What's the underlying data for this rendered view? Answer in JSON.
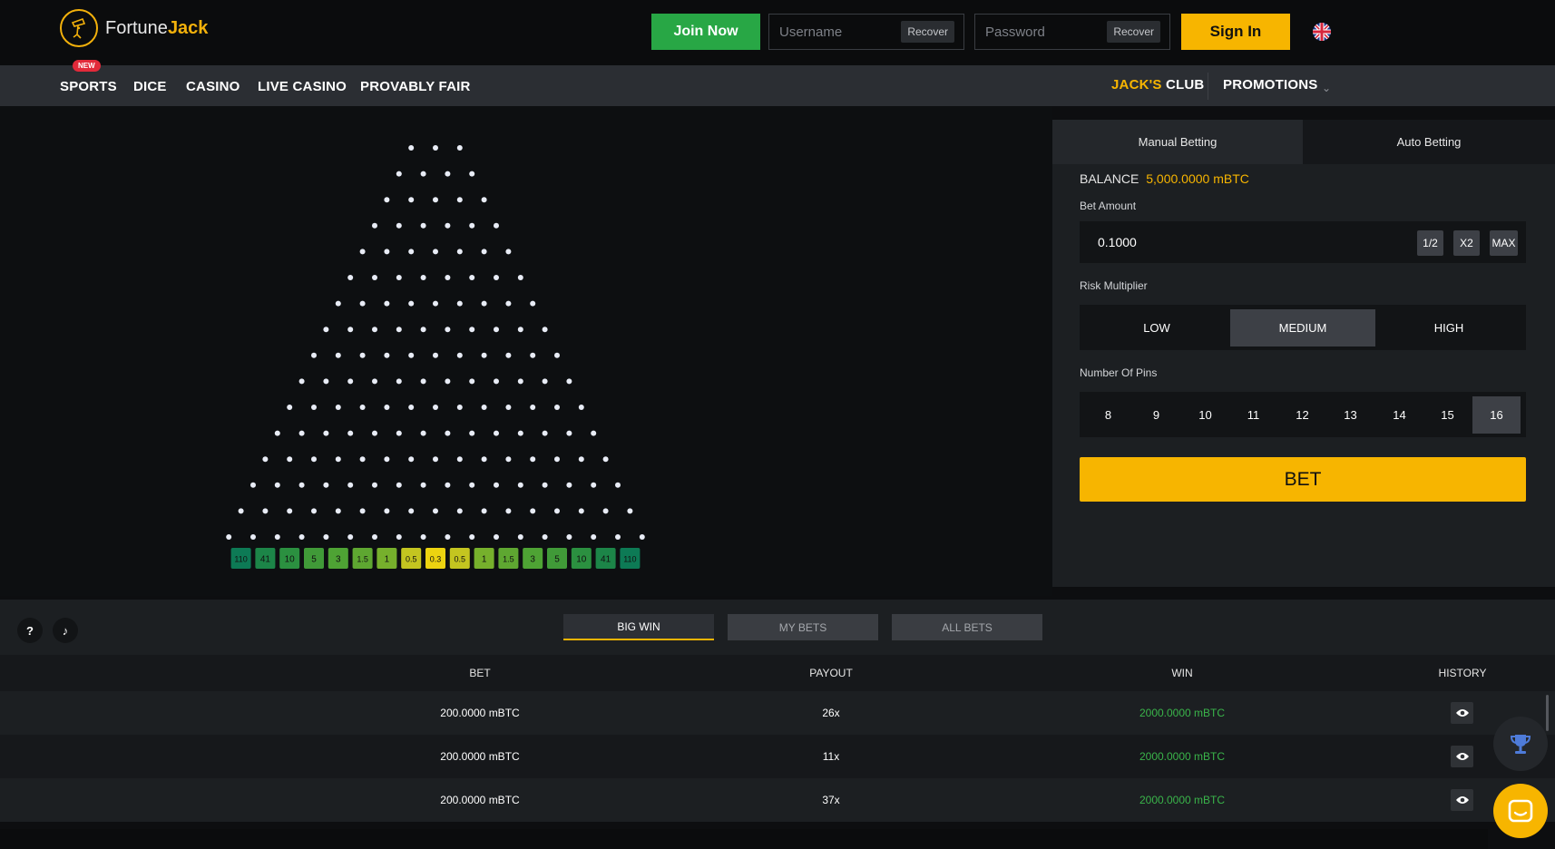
{
  "brand": {
    "name_part1": "Fortune",
    "name_part2": "Jack",
    "accent": "#f7b500"
  },
  "header": {
    "join_label": "Join Now",
    "username_placeholder": "Username",
    "password_placeholder": "Password",
    "recover_label": "Recover",
    "signin_label": "Sign In",
    "language_icon": "uk-flag-icon"
  },
  "nav": {
    "new_badge": "NEW",
    "items": [
      "SPORTS",
      "DICE",
      "CASINO",
      "LIVE CASINO",
      "PROVABLY FAIR"
    ],
    "club_prefix": "JACK'S",
    "club_suffix": "CLUB",
    "promotions": "PROMOTIONS"
  },
  "game": {
    "pin_rows": 16,
    "multipliers": [
      {
        "label": "110",
        "color": "#0d7a55"
      },
      {
        "label": "41",
        "color": "#1c8548"
      },
      {
        "label": "10",
        "color": "#2b9040"
      },
      {
        "label": "5",
        "color": "#409a38"
      },
      {
        "label": "3",
        "color": "#4ea334"
      },
      {
        "label": "1.5",
        "color": "#5ea731"
      },
      {
        "label": "1",
        "color": "#76b02c"
      },
      {
        "label": "0.5",
        "color": "#c4c520"
      },
      {
        "label": "0.3",
        "color": "#ecd310"
      },
      {
        "label": "0.5",
        "color": "#c4c520"
      },
      {
        "label": "1",
        "color": "#76b02c"
      },
      {
        "label": "1.5",
        "color": "#5ea731"
      },
      {
        "label": "3",
        "color": "#4ea334"
      },
      {
        "label": "5",
        "color": "#409a38"
      },
      {
        "label": "10",
        "color": "#2b9040"
      },
      {
        "label": "41",
        "color": "#1c8548"
      },
      {
        "label": "110",
        "color": "#0d7a55"
      }
    ]
  },
  "panel": {
    "tab_manual": "Manual Betting",
    "tab_auto": "Auto Betting",
    "balance_label": "BALANCE",
    "balance_value": "5,000.0000",
    "balance_unit": "mBTC",
    "bet_amount_label": "Bet Amount",
    "bet_amount_value": "0.1000",
    "half_label": "1/2",
    "double_label": "X2",
    "max_label": "MAX",
    "risk_label": "Risk Multiplier",
    "risk_options": [
      "LOW",
      "MEDIUM",
      "HIGH"
    ],
    "risk_selected": "MEDIUM",
    "pins_label": "Number Of Pins",
    "pins_options": [
      "8",
      "9",
      "10",
      "11",
      "12",
      "13",
      "14",
      "15",
      "16"
    ],
    "pins_selected": "16",
    "bet_button": "BET"
  },
  "bets": {
    "help_label": "?",
    "music_label": "♪",
    "tabs": [
      "BIG WIN",
      "MY BETS",
      "ALL BETS"
    ],
    "active_tab": "BIG WIN",
    "columns": [
      "BET",
      "PAYOUT",
      "WIN",
      "HISTORY"
    ],
    "rows": [
      {
        "bet": "200.0000 mBTC",
        "payout": "26x",
        "win": "2000.0000 mBTC"
      },
      {
        "bet": "200.0000 mBTC",
        "payout": "11x",
        "win": "2000.0000 mBTC"
      },
      {
        "bet": "200.0000 mBTC",
        "payout": "37x",
        "win": "2000.0000 mBTC"
      }
    ]
  }
}
